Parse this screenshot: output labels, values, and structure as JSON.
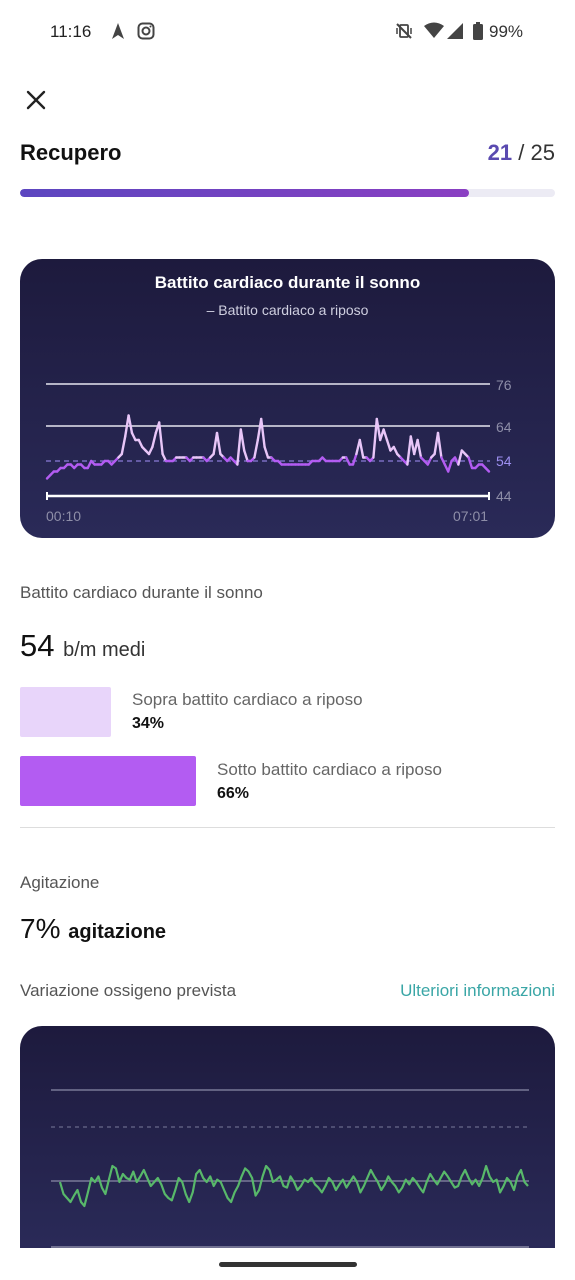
{
  "status_bar": {
    "time": "11:16",
    "battery": "99%",
    "icons": [
      "navigation-icon",
      "instagram-icon",
      "vibrate-off-icon",
      "wifi-icon",
      "signal-icon",
      "battery-icon"
    ]
  },
  "header": {
    "title": "Recupero",
    "score": "21",
    "score_sep": "/",
    "score_total": "25",
    "progress": 0.84
  },
  "hr_chart": {
    "title": "Battito cardiaco durante il sonno",
    "subtitle": "– Battito cardiaco a riposo",
    "x_start": "00:10",
    "x_end": "07:01",
    "ticks": [
      "76",
      "64",
      "54",
      "44"
    ]
  },
  "hr_section": {
    "label": "Battito cardiaco durante il sonno",
    "value": "54",
    "unit": "b/m medi",
    "above_label": "Sopra battito cardiaco a riposo",
    "above_value": "34%",
    "below_label": "Sotto battito cardiaco a riposo",
    "below_value": "66%"
  },
  "restlessness": {
    "label": "Agitazione",
    "value": "7%",
    "unit": "agitazione"
  },
  "oxygen": {
    "label": "Variazione ossigeno prevista",
    "link": "Ulteriori informazioni"
  },
  "colors": {
    "accent": "#5a4ab0",
    "above": "#e8d5fa",
    "below": "#b35cf2",
    "oxygen_line": "#58b86a",
    "link": "#3aa6a6"
  },
  "chart_data": [
    {
      "type": "line",
      "title": "Battito cardiaco durante il sonno",
      "subtitle": "– Battito cardiaco a riposo",
      "x_labels": [
        "00:10",
        "07:01"
      ],
      "y_ticks": [
        44,
        54,
        64,
        76
      ],
      "ylim": [
        44,
        76
      ],
      "resting_hr": 54,
      "series": [
        {
          "values": [
            49,
            50,
            51,
            51,
            52,
            52,
            53,
            53,
            52,
            53,
            53,
            52,
            52,
            54,
            53,
            53,
            53,
            54,
            54,
            53,
            54,
            55,
            56,
            61,
            67,
            62,
            60,
            60,
            58,
            57,
            56,
            58,
            62,
            65,
            56,
            54,
            54,
            54,
            55,
            55,
            55,
            55,
            54,
            55,
            55,
            55,
            55,
            54,
            55,
            56,
            62,
            56,
            55,
            54,
            55,
            54,
            53,
            63,
            57,
            54,
            54,
            55,
            60,
            66,
            58,
            55,
            55,
            54,
            54,
            53,
            53,
            53,
            53,
            53,
            53,
            53,
            53,
            53,
            54,
            54,
            54,
            55,
            54,
            54,
            54,
            54,
            54,
            55,
            55,
            53,
            53,
            56,
            60,
            55,
            55,
            54,
            55,
            66,
            60,
            63,
            60,
            57,
            58,
            56,
            55,
            54,
            53,
            61,
            56,
            60,
            55,
            54,
            53,
            55,
            56,
            62,
            55,
            53,
            51,
            54,
            55,
            53,
            57,
            56,
            55,
            52,
            52,
            53,
            53,
            52,
            51
          ]
        }
      ]
    },
    {
      "type": "line",
      "title": "",
      "series": [
        {
          "values": [
            0.55,
            0.4,
            0.35,
            0.3,
            0.38,
            0.45,
            0.3,
            0.25,
            0.42,
            0.6,
            0.55,
            0.62,
            0.48,
            0.4,
            0.58,
            0.75,
            0.72,
            0.55,
            0.65,
            0.6,
            0.58,
            0.68,
            0.55,
            0.62,
            0.7,
            0.6,
            0.5,
            0.55,
            0.6,
            0.52,
            0.4,
            0.35,
            0.32,
            0.45,
            0.6,
            0.55,
            0.4,
            0.3,
            0.42,
            0.65,
            0.7,
            0.6,
            0.55,
            0.62,
            0.5,
            0.58,
            0.55,
            0.45,
            0.35,
            0.3,
            0.42,
            0.5,
            0.62,
            0.72,
            0.68,
            0.6,
            0.38,
            0.45,
            0.62,
            0.75,
            0.7,
            0.55,
            0.58,
            0.62,
            0.5,
            0.48,
            0.62,
            0.55,
            0.45,
            0.5,
            0.58,
            0.55,
            0.6,
            0.52,
            0.48,
            0.42,
            0.5,
            0.6,
            0.55,
            0.45,
            0.52,
            0.58,
            0.48,
            0.55,
            0.62,
            0.55,
            0.42,
            0.5,
            0.6,
            0.7,
            0.62,
            0.55,
            0.45,
            0.52,
            0.62,
            0.55,
            0.5,
            0.42,
            0.48,
            0.58,
            0.52,
            0.6,
            0.55,
            0.48,
            0.42,
            0.55,
            0.65,
            0.58,
            0.52,
            0.6,
            0.68,
            0.62,
            0.55,
            0.48,
            0.5,
            0.62,
            0.7,
            0.6,
            0.52,
            0.58,
            0.5,
            0.6,
            0.75,
            0.62,
            0.55,
            0.58,
            0.42,
            0.5,
            0.6,
            0.55,
            0.45,
            0.62,
            0.7,
            0.55,
            0.5
          ]
        }
      ]
    }
  ]
}
